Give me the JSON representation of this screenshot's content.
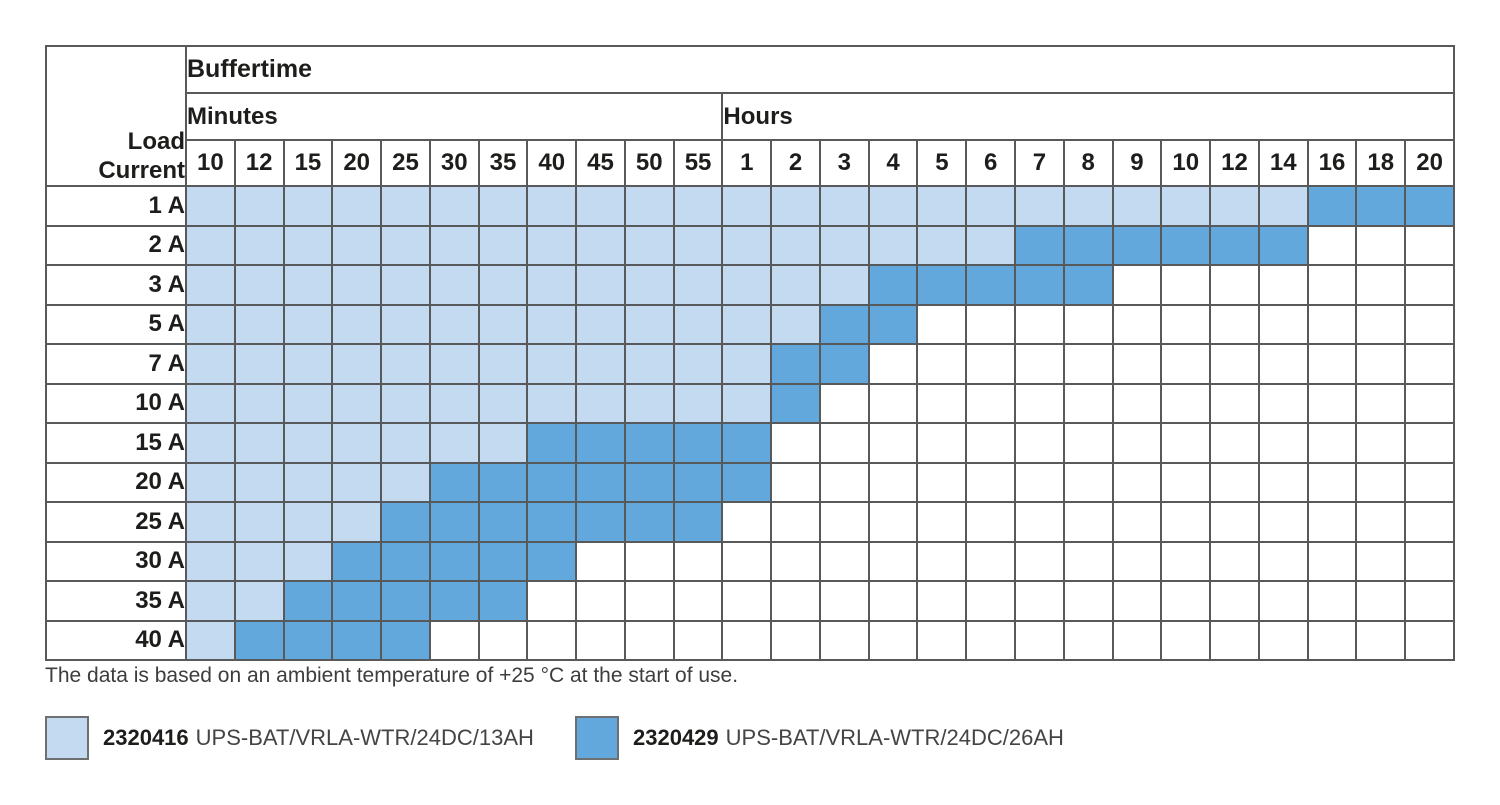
{
  "chart_data": {
    "type": "heatmap",
    "title": "Buffertime",
    "row_header": "Load Current",
    "col_groups": [
      {
        "label": "Minutes",
        "span": 11
      },
      {
        "label": "Hours",
        "span": 15
      }
    ],
    "columns": [
      "10",
      "12",
      "15",
      "20",
      "25",
      "30",
      "35",
      "40",
      "45",
      "50",
      "55",
      "1",
      "2",
      "3",
      "4",
      "5",
      "6",
      "7",
      "8",
      "9",
      "10",
      "12",
      "14",
      "16",
      "18",
      "20"
    ],
    "rows": [
      {
        "label": "1 A",
        "cells": "LLLLLLLLLLLLLLLLLLLLLLLDDD"
      },
      {
        "label": "2 A",
        "cells": "LLLLLLLLLLLLLLLLLDDDDDDWWW"
      },
      {
        "label": "3 A",
        "cells": "LLLLLLLLLLLLLLDDDDDWWWWWWW"
      },
      {
        "label": "5 A",
        "cells": "LLLLLLLLLLLLLDDWWWWWWWWWWW"
      },
      {
        "label": "7 A",
        "cells": "LLLLLLLLLLLLDDWWWWWWWWWWWW"
      },
      {
        "label": "10 A",
        "cells": "LLLLLLLLLLLLDWWWWWWWWWWWWW"
      },
      {
        "label": "15 A",
        "cells": "LLLLLLLDDDDDWWWWWWWWWWWWWW"
      },
      {
        "label": "20 A",
        "cells": "LLLLLDDDDDDDWWWWWWWWWWWWWW"
      },
      {
        "label": "25 A",
        "cells": "LLLLDDDDDDDWWWWWWWWWWWWWWW"
      },
      {
        "label": "30 A",
        "cells": "LLLDDDDDWWWWWWWWWWWWWWWWWW"
      },
      {
        "label": "35 A",
        "cells": "LLDDDDDWWWWWWWWWWWWWWWWWWW"
      },
      {
        "label": "40 A",
        "cells": "LDDDDWWWWWWWWWWWWWWWWWWWWW"
      }
    ],
    "cell_codes": {
      "L": "2320416 UPS-BAT/VRLA-WTR/24DC/13AH",
      "D": "2320429 UPS-BAT/VRLA-WTR/24DC/26AH",
      "W": "no buffering"
    },
    "legend_position": "bottom",
    "grid": true
  },
  "colors": {
    "cell_light": "#c3daf0",
    "cell_dark": "#62a8dc",
    "cell_empty": "#ffffff",
    "grid": "#58595b",
    "text": "#1d1d1b"
  },
  "footnote": "The data is based on an ambient temperature of +25 °C at the start of use.",
  "legend": {
    "items": [
      {
        "code": "2320416",
        "label": "UPS-BAT/VRLA-WTR/24DC/13AH",
        "color_key": "cell_light"
      },
      {
        "code": "2320429",
        "label": "UPS-BAT/VRLA-WTR/24DC/26AH",
        "color_key": "cell_dark"
      }
    ]
  }
}
